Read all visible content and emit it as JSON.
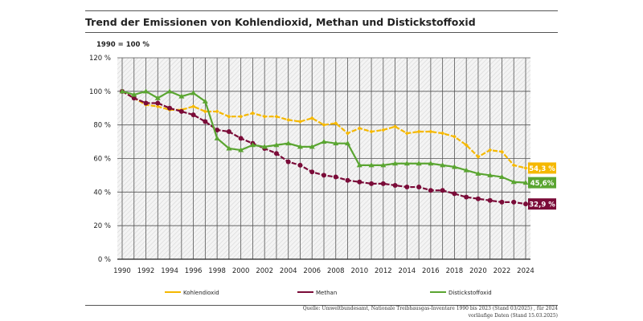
{
  "chart_data": {
    "type": "line",
    "title": "Trend der Emissionen von Kohlendioxid, Methan und Distickstoffoxid",
    "unit_note": "1990 = 100 %",
    "x": [
      1990,
      1991,
      1992,
      1993,
      1994,
      1995,
      1996,
      1997,
      1998,
      1999,
      2000,
      2001,
      2002,
      2003,
      2004,
      2005,
      2006,
      2007,
      2008,
      2009,
      2010,
      2011,
      2012,
      2013,
      2014,
      2015,
      2016,
      2017,
      2018,
      2019,
      2020,
      2021,
      2022,
      2023,
      2024
    ],
    "x_tick_labels": [
      "1990",
      "1992",
      "1994",
      "1996",
      "1998",
      "2000",
      "2002",
      "2004",
      "2006",
      "2008",
      "2010",
      "2012",
      "2014",
      "2016",
      "2018",
      "2020",
      "2022",
      "2024"
    ],
    "y_tick_labels": [
      "0 %",
      "20 %",
      "40 %",
      "60 %",
      "80 %",
      "100 %",
      "120 %"
    ],
    "ylim": [
      0,
      120
    ],
    "grid": true,
    "legend_placement": "bottom",
    "series": [
      {
        "name": "Kohlendioxid",
        "color": "#f5b800",
        "marker": "diamond",
        "end_label": "54,3 %",
        "values": [
          100,
          96,
          92,
          91,
          89,
          89,
          91,
          88,
          88,
          85,
          85,
          87,
          85,
          85,
          83,
          82,
          84,
          80,
          81,
          75,
          78,
          76,
          77,
          79,
          75,
          76,
          76,
          75,
          73,
          68,
          61,
          65,
          64,
          56,
          54.3
        ]
      },
      {
        "name": "Methan",
        "color": "#7a0b38",
        "marker": "circle",
        "end_label": "32,9 %",
        "values": [
          100,
          96,
          93,
          93,
          90,
          88,
          86,
          82,
          77,
          76,
          72,
          69,
          66,
          63,
          58,
          56,
          52,
          50,
          49,
          47,
          46,
          45,
          45,
          44,
          43,
          43,
          41,
          41,
          39,
          37,
          36,
          35,
          34,
          34,
          32.9
        ]
      },
      {
        "name": "Distickstoffoxid",
        "color": "#5aa531",
        "marker": "triangle",
        "end_label": "45,6%",
        "values": [
          100,
          98,
          100,
          96,
          100,
          97,
          99,
          94,
          72,
          66,
          65,
          68,
          67,
          68,
          69,
          67,
          67,
          70,
          69,
          69,
          56,
          56,
          56,
          57,
          57,
          57,
          57,
          56,
          55,
          53,
          51,
          50,
          49,
          46,
          45.6
        ]
      }
    ]
  },
  "source": {
    "line1": "Quelle: Umweltbundesamt, Nationale Treibhausgas-Inventare 1990 bis 2023 (Stand 03/2025) , für 2024",
    "line2": "vorläufige Daten (Stand 15.03.2025)"
  }
}
